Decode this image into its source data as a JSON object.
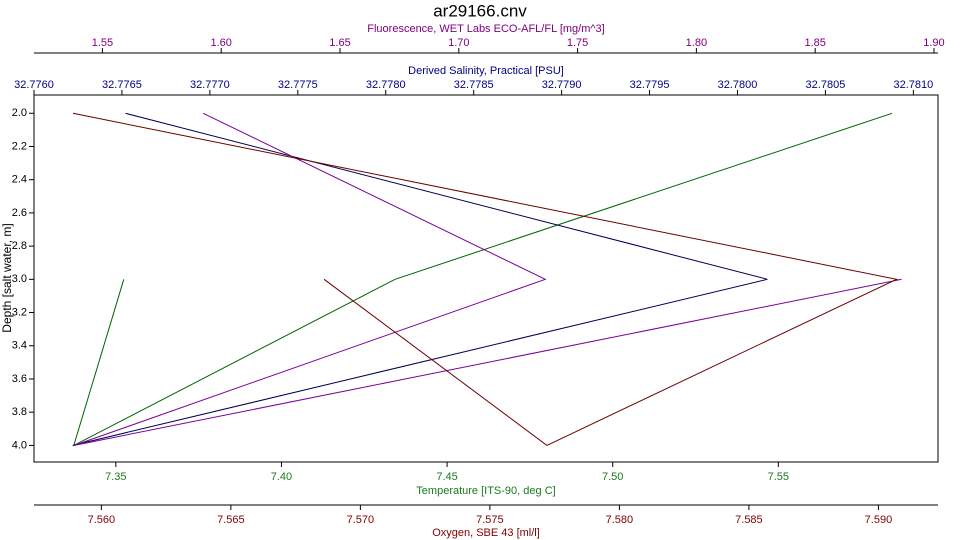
{
  "chart_data": {
    "type": "line",
    "title": "ar29166.cnv",
    "y_label": "Depth [salt water, m]",
    "ylim": [
      1.89,
      4.1
    ],
    "y_inverted": true,
    "yticks": [
      {
        "value": 2,
        "label": "2.0"
      },
      2.2,
      2.4,
      2.6,
      2.8,
      {
        "value": 3,
        "label": "3.0"
      },
      3.2,
      3.4,
      3.6,
      3.8,
      {
        "value": 4,
        "label": "4.0"
      }
    ],
    "x_axes": [
      {
        "label": "Fluorescence, WET Labs ECO-AFL/FL [mg/m^3]",
        "color": "#800080",
        "xlim": [
          1.5212,
          1.9017
        ],
        "xticks": [
          1.55,
          {
            "value": 1.6,
            "label": "1.60"
          },
          1.65,
          {
            "value": 1.7,
            "label": "1.70"
          },
          1.75,
          {
            "value": 1.8,
            "label": "1.80"
          },
          1.85,
          {
            "value": 1.9,
            "label": "1.90"
          }
        ]
      },
      {
        "label": "Derived Salinity, Practical [PSU]",
        "color": "#000080",
        "xlim": [
          32.776,
          32.78114
        ],
        "xticks": [
          {
            "value": 32.776,
            "label": "32.7760"
          },
          32.7765,
          {
            "value": 32.777,
            "label": "32.7770"
          },
          32.7775,
          {
            "value": 32.778,
            "label": "32.7780"
          },
          32.7785,
          {
            "value": 32.779,
            "label": "32.7790"
          },
          32.7795,
          {
            "value": 32.78,
            "label": "32.7800"
          },
          32.7805,
          {
            "value": 32.781,
            "label": "32.7810"
          }
        ]
      },
      {
        "label": "Temperature [ITS-90, deg C]",
        "color": "#1a7a1a",
        "xlim": [
          7.3253,
          7.5982
        ],
        "xticks": [
          7.35,
          {
            "value": 7.4,
            "label": "7.40"
          },
          7.45,
          {
            "value": 7.5,
            "label": "7.50"
          },
          7.55
        ]
      },
      {
        "label": "Oxygen, SBE 43 [ml/l]",
        "color": "#800000",
        "xlim": [
          7.5574,
          7.5923
        ],
        "xticks": [
          {
            "value": 7.56,
            "label": "7.560"
          },
          7.565,
          {
            "value": 7.57,
            "label": "7.570"
          },
          7.575,
          {
            "value": 7.58,
            "label": "7.580"
          },
          7.585,
          {
            "value": 7.59,
            "label": "7.590"
          }
        ]
      }
    ],
    "series": [
      {
        "axis": 2,
        "color": "#006400",
        "x": [
          7.5843,
          7.4343,
          7.3373,
          7.3524
        ],
        "y": [
          2,
          3,
          4,
          3
        ]
      },
      {
        "axis": 1,
        "color": "#000050",
        "x": [
          32.77652,
          32.78017,
          32.77622
        ],
        "y": [
          2,
          3,
          4
        ]
      },
      {
        "axis": 0,
        "color": "#7a0099",
        "x": [
          1.5924,
          1.7364,
          1.5381,
          1.8864
        ],
        "y": [
          2,
          3,
          4,
          3
        ]
      },
      {
        "axis": 3,
        "color": "#6b0000",
        "x": [
          7.5589,
          7.5907,
          7.5772,
          7.5686
        ],
        "y": [
          2,
          3,
          4,
          3
        ]
      }
    ]
  }
}
